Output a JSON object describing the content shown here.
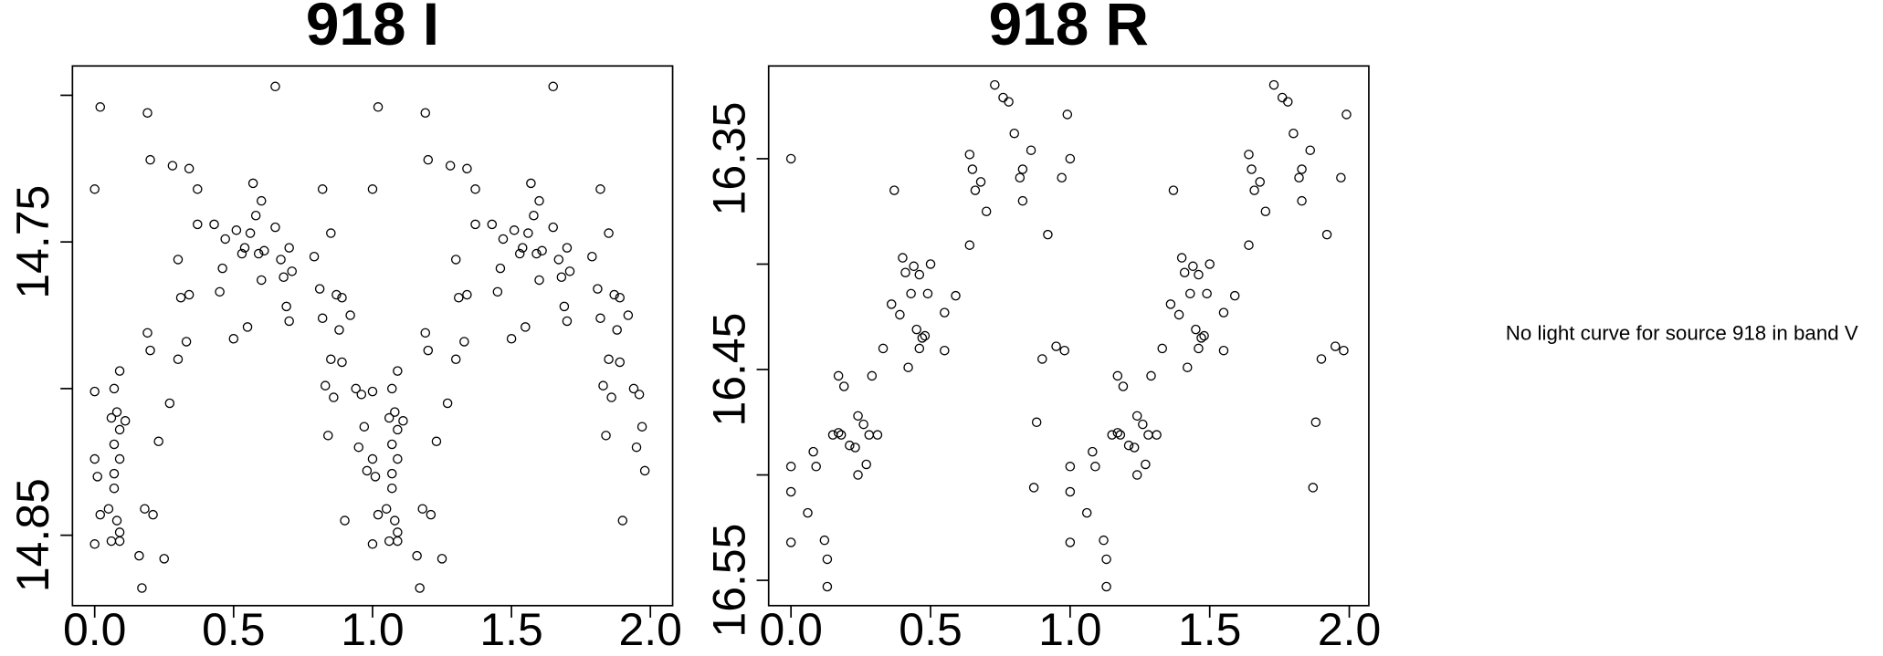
{
  "chart_data": [
    {
      "type": "scatter",
      "title": "918 I",
      "color": "#000000",
      "y_inverted": true,
      "xlim": [
        -0.08,
        2.08
      ],
      "xticks": [
        {
          "value": 0,
          "label": "0.0"
        },
        {
          "value": 0.5,
          "label": "0.5"
        },
        {
          "value": 1,
          "label": "1.0"
        },
        {
          "value": 1.5,
          "label": "1.5"
        },
        {
          "value": 2,
          "label": "2.0"
        }
      ],
      "ylim": [
        14.69,
        14.874
      ],
      "yticks": [
        14.75,
        14.85
      ],
      "ytick_marks": [
        14.7,
        14.75,
        14.8,
        14.85
      ],
      "x": [
        0.0,
        0.02,
        0.0,
        0.0,
        0.01,
        0.0,
        0.02,
        0.05,
        0.06,
        0.07,
        0.08,
        0.07,
        0.07,
        0.07,
        0.08,
        0.06,
        0.09,
        0.09,
        0.09,
        0.11,
        0.09,
        0.09,
        0.16,
        0.17,
        0.18,
        0.19,
        0.19,
        0.2,
        0.2,
        0.21,
        0.23,
        0.25,
        0.27,
        0.28,
        0.3,
        0.31,
        0.3,
        0.33,
        0.34,
        0.34,
        0.37,
        0.37,
        0.43,
        0.45,
        0.46,
        0.47,
        0.5,
        0.51,
        0.53,
        0.54,
        0.55,
        0.56,
        0.57,
        0.58,
        0.59,
        0.6,
        0.6,
        0.61,
        0.65,
        0.65,
        0.67,
        0.68,
        0.69,
        0.7,
        0.7,
        0.71,
        0.79,
        0.81,
        0.82,
        0.82,
        0.83,
        0.84,
        0.85,
        0.85,
        0.86,
        0.87,
        0.88,
        0.89,
        0.89,
        0.9,
        0.92,
        0.94,
        0.96,
        0.95,
        0.97,
        0.98,
        1.0,
        1.02,
        1.0,
        1.0,
        1.01,
        1.0,
        1.02,
        1.05,
        1.06,
        1.07,
        1.08,
        1.07,
        1.07,
        1.07,
        1.08,
        1.06,
        1.09,
        1.09,
        1.09,
        1.11,
        1.09,
        1.09,
        1.16,
        1.17,
        1.18,
        1.19,
        1.19,
        1.2,
        1.2,
        1.21,
        1.23,
        1.25,
        1.27,
        1.28,
        1.3,
        1.31,
        1.3,
        1.33,
        1.34,
        1.34,
        1.37,
        1.37,
        1.43,
        1.45,
        1.46,
        1.47,
        1.5,
        1.51,
        1.53,
        1.54,
        1.55,
        1.56,
        1.57,
        1.58,
        1.59,
        1.6,
        1.6,
        1.61,
        1.65,
        1.65,
        1.67,
        1.68,
        1.69,
        1.7,
        1.7,
        1.71,
        1.79,
        1.81,
        1.82,
        1.82,
        1.83,
        1.84,
        1.85,
        1.85,
        1.86,
        1.87,
        1.88,
        1.89,
        1.89,
        1.9,
        1.92,
        1.94,
        1.96,
        1.95,
        1.97,
        1.98
      ],
      "values": [
        14.732,
        14.704,
        14.801,
        14.824,
        14.83,
        14.853,
        14.843,
        14.841,
        14.81,
        14.8,
        14.808,
        14.819,
        14.829,
        14.834,
        14.845,
        14.852,
        14.794,
        14.814,
        14.824,
        14.811,
        14.849,
        14.852,
        14.857,
        14.868,
        14.841,
        14.706,
        14.781,
        14.787,
        14.722,
        14.843,
        14.818,
        14.858,
        14.805,
        14.724,
        14.756,
        14.769,
        14.79,
        14.784,
        14.768,
        14.725,
        14.732,
        14.744,
        14.744,
        14.767,
        14.759,
        14.749,
        14.783,
        14.746,
        14.754,
        14.752,
        14.779,
        14.747,
        14.73,
        14.741,
        14.754,
        14.763,
        14.736,
        14.753,
        14.697,
        14.745,
        14.756,
        14.762,
        14.772,
        14.752,
        14.777,
        14.76,
        14.755,
        14.766,
        14.776,
        14.732,
        14.799,
        14.816,
        14.747,
        14.79,
        14.803,
        14.768,
        14.78,
        14.791,
        14.769,
        14.845,
        14.775,
        14.8,
        14.802,
        14.82,
        14.813,
        14.828,
        14.732,
        14.704,
        14.801,
        14.824,
        14.83,
        14.853,
        14.843,
        14.841,
        14.81,
        14.8,
        14.808,
        14.819,
        14.829,
        14.834,
        14.845,
        14.852,
        14.794,
        14.814,
        14.824,
        14.811,
        14.849,
        14.852,
        14.857,
        14.868,
        14.841,
        14.706,
        14.781,
        14.787,
        14.722,
        14.843,
        14.818,
        14.858,
        14.805,
        14.724,
        14.756,
        14.769,
        14.79,
        14.784,
        14.768,
        14.725,
        14.732,
        14.744,
        14.744,
        14.767,
        14.759,
        14.749,
        14.783,
        14.746,
        14.754,
        14.752,
        14.779,
        14.747,
        14.73,
        14.741,
        14.754,
        14.763,
        14.736,
        14.753,
        14.697,
        14.745,
        14.756,
        14.762,
        14.772,
        14.752,
        14.777,
        14.76,
        14.755,
        14.766,
        14.776,
        14.732,
        14.799,
        14.816,
        14.747,
        14.79,
        14.803,
        14.768,
        14.78,
        14.791,
        14.769,
        14.845,
        14.775,
        14.8,
        14.802,
        14.82,
        14.813,
        14.828
      ]
    },
    {
      "type": "scatter",
      "title": "918 R",
      "color": "#000000",
      "y_inverted": true,
      "xlim": [
        -0.08,
        2.07
      ],
      "xticks": [
        {
          "value": 0,
          "label": "0.0"
        },
        {
          "value": 0.5,
          "label": "0.5"
        },
        {
          "value": 1,
          "label": "1.0"
        },
        {
          "value": 1.5,
          "label": "1.5"
        },
        {
          "value": 2,
          "label": "2.0"
        }
      ],
      "ylim": [
        16.306,
        16.562
      ],
      "yticks": [
        16.35,
        16.45,
        16.55
      ],
      "ytick_marks": [
        16.35,
        16.4,
        16.45,
        16.5,
        16.55
      ],
      "x": [
        0.0,
        0.0,
        0.0,
        0.0,
        0.06,
        0.08,
        0.09,
        0.12,
        0.13,
        0.13,
        0.15,
        0.17,
        0.17,
        0.18,
        0.19,
        0.21,
        0.23,
        0.24,
        0.24,
        0.26,
        0.27,
        0.28,
        0.29,
        0.31,
        0.33,
        0.36,
        0.37,
        0.39,
        0.4,
        0.41,
        0.42,
        0.43,
        0.44,
        0.45,
        0.46,
        0.46,
        0.47,
        0.48,
        0.49,
        0.5,
        0.55,
        0.55,
        0.59,
        0.64,
        0.64,
        0.65,
        0.66,
        0.68,
        0.7,
        0.73,
        0.76,
        0.78,
        0.8,
        0.82,
        0.83,
        0.83,
        0.86,
        0.87,
        0.88,
        0.9,
        0.92,
        0.95,
        0.97,
        0.98,
        0.99,
        1.0,
        1.0,
        1.0,
        1.0,
        1.06,
        1.08,
        1.09,
        1.12,
        1.13,
        1.13,
        1.15,
        1.17,
        1.17,
        1.18,
        1.19,
        1.21,
        1.23,
        1.24,
        1.24,
        1.26,
        1.27,
        1.28,
        1.29,
        1.31,
        1.33,
        1.36,
        1.37,
        1.39,
        1.4,
        1.41,
        1.42,
        1.43,
        1.44,
        1.45,
        1.46,
        1.46,
        1.47,
        1.48,
        1.49,
        1.5,
        1.55,
        1.55,
        1.59,
        1.64,
        1.64,
        1.65,
        1.66,
        1.68,
        1.7,
        1.73,
        1.76,
        1.78,
        1.8,
        1.82,
        1.83,
        1.83,
        1.86,
        1.87,
        1.88,
        1.9,
        1.92,
        1.95,
        1.97,
        1.98,
        1.99
      ],
      "values": [
        16.35,
        16.496,
        16.508,
        16.532,
        16.518,
        16.489,
        16.496,
        16.531,
        16.54,
        16.553,
        16.481,
        16.48,
        16.453,
        16.481,
        16.458,
        16.486,
        16.487,
        16.5,
        16.472,
        16.476,
        16.495,
        16.481,
        16.453,
        16.481,
        16.44,
        16.419,
        16.365,
        16.424,
        16.397,
        16.404,
        16.449,
        16.414,
        16.401,
        16.431,
        16.44,
        16.405,
        16.435,
        16.434,
        16.414,
        16.4,
        16.423,
        16.441,
        16.415,
        16.391,
        16.348,
        16.355,
        16.365,
        16.361,
        16.375,
        16.315,
        16.321,
        16.323,
        16.338,
        16.359,
        16.355,
        16.37,
        16.346,
        16.506,
        16.475,
        16.445,
        16.386,
        16.439,
        16.359,
        16.441,
        16.329,
        16.35,
        16.496,
        16.508,
        16.532,
        16.518,
        16.489,
        16.496,
        16.531,
        16.54,
        16.553,
        16.481,
        16.48,
        16.453,
        16.481,
        16.458,
        16.486,
        16.487,
        16.5,
        16.472,
        16.476,
        16.495,
        16.481,
        16.453,
        16.481,
        16.44,
        16.419,
        16.365,
        16.424,
        16.397,
        16.404,
        16.449,
        16.414,
        16.401,
        16.431,
        16.44,
        16.405,
        16.435,
        16.434,
        16.414,
        16.4,
        16.423,
        16.441,
        16.415,
        16.391,
        16.348,
        16.355,
        16.365,
        16.361,
        16.375,
        16.315,
        16.321,
        16.323,
        16.338,
        16.359,
        16.355,
        16.37,
        16.346,
        16.506,
        16.475,
        16.445,
        16.386,
        16.439,
        16.359,
        16.441,
        16.329
      ]
    }
  ],
  "note": "No light curve for source 918 in band V"
}
